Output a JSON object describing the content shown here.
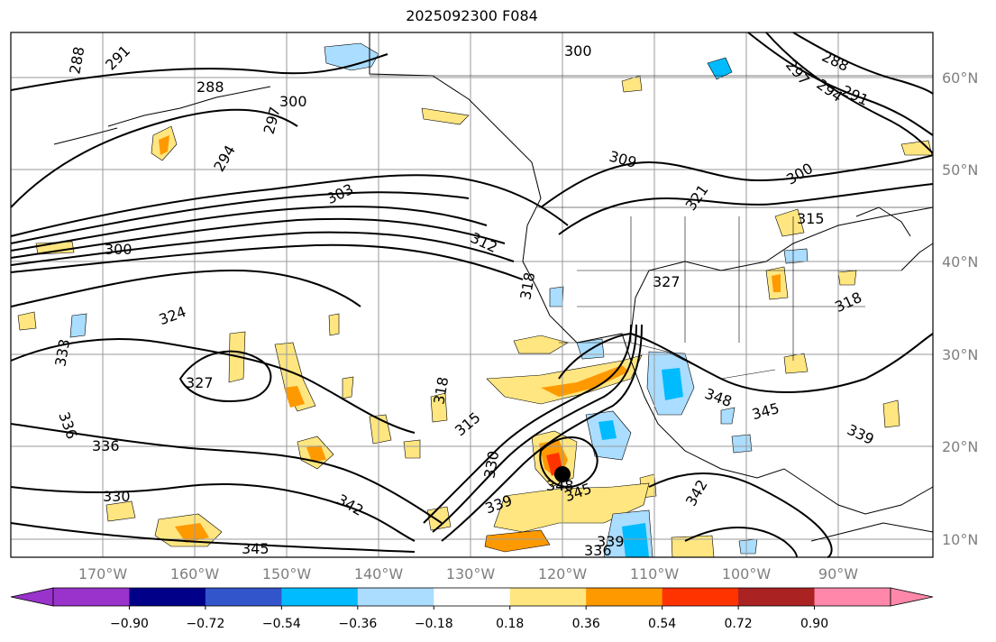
{
  "title": "2025092300 F084",
  "map": {
    "lat_labels": [
      "60°N",
      "50°N",
      "40°N",
      "30°N",
      "20°N",
      "10°N"
    ],
    "lon_labels": [
      "170°W",
      "160°W",
      "150°W",
      "140°W",
      "130°W",
      "120°W",
      "110°W",
      "100°W",
      "90°W"
    ],
    "contour_labels": [
      {
        "text": "288"
      },
      {
        "text": "291"
      },
      {
        "text": "288"
      },
      {
        "text": "297"
      },
      {
        "text": "300"
      },
      {
        "text": "294"
      },
      {
        "text": "300"
      },
      {
        "text": "303"
      },
      {
        "text": "300"
      },
      {
        "text": "309"
      },
      {
        "text": "312"
      },
      {
        "text": "318"
      },
      {
        "text": "321"
      },
      {
        "text": "300"
      },
      {
        "text": "288"
      },
      {
        "text": "297"
      },
      {
        "text": "294"
      },
      {
        "text": "291"
      },
      {
        "text": "315"
      },
      {
        "text": "324"
      },
      {
        "text": "333"
      },
      {
        "text": "327"
      },
      {
        "text": "318"
      },
      {
        "text": "315"
      },
      {
        "text": "336"
      },
      {
        "text": "336"
      },
      {
        "text": "330"
      },
      {
        "text": "330"
      },
      {
        "text": "339"
      },
      {
        "text": "342"
      },
      {
        "text": "345"
      },
      {
        "text": "348"
      },
      {
        "text": "345"
      },
      {
        "text": "342"
      },
      {
        "text": "348"
      },
      {
        "text": "345"
      },
      {
        "text": "339"
      },
      {
        "text": "318"
      },
      {
        "text": "327"
      },
      {
        "text": "339"
      },
      {
        "text": "336"
      }
    ],
    "storm_marker": "filled-circle"
  },
  "colorbar": {
    "ticks": [
      "−0.90",
      "−0.72",
      "−0.54",
      "−0.36",
      "−0.18",
      "0.18",
      "0.36",
      "0.54",
      "0.72",
      "0.90"
    ],
    "colors": [
      "#9933cc",
      "#000088",
      "#3355cc",
      "#00bbff",
      "#aaddff",
      "#ffffff",
      "#ffe680",
      "#ff9900",
      "#ff3300",
      "#aa2222",
      "#ff88aa"
    ]
  }
}
